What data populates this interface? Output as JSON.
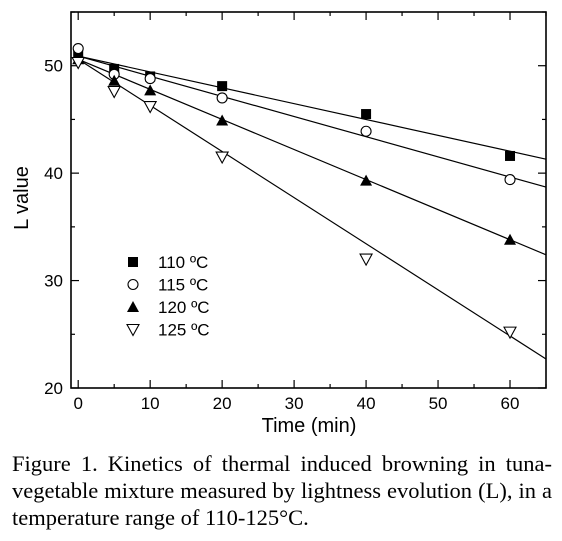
{
  "caption": "Figure 1. Kinetics of thermal induced browning in tuna-vegetable mixture measured by lightness evolution (L), in a temperature range of 110-125°C.",
  "chart_data": {
    "type": "scatter",
    "title": "",
    "xlabel": "Time (min)",
    "ylabel": "L value",
    "xlim": [
      -1,
      65
    ],
    "ylim": [
      20,
      55
    ],
    "xticks": [
      0,
      10,
      20,
      30,
      40,
      50,
      60
    ],
    "yticks": [
      20,
      30,
      40,
      50
    ],
    "grid": false,
    "legend_position": "bottom-left",
    "series": [
      {
        "name": "110 ºC",
        "marker": "filled-square",
        "x": [
          0,
          5,
          10,
          20,
          40,
          60
        ],
        "y": [
          51.0,
          49.7,
          49.0,
          48.1,
          45.5,
          41.6
        ],
        "fit": {
          "x": [
            0,
            65
          ],
          "y": [
            50.9,
            41.3
          ]
        }
      },
      {
        "name": "115 ºC",
        "marker": "open-circle",
        "x": [
          0,
          5,
          10,
          20,
          40,
          60
        ],
        "y": [
          51.6,
          49.2,
          48.8,
          47.0,
          43.9,
          39.4
        ],
        "fit": {
          "x": [
            0,
            65
          ],
          "y": [
            50.9,
            38.7
          ]
        }
      },
      {
        "name": "120 ºC",
        "marker": "filled-triangle-up",
        "x": [
          0,
          5,
          10,
          20,
          40,
          60
        ],
        "y": [
          50.6,
          48.6,
          47.7,
          44.9,
          39.3,
          33.8
        ],
        "fit": {
          "x": [
            0,
            65
          ],
          "y": [
            50.6,
            32.4
          ]
        }
      },
      {
        "name": "125 ºC",
        "marker": "open-triangle-down",
        "x": [
          0,
          5,
          10,
          20,
          40,
          60
        ],
        "y": [
          50.3,
          47.6,
          46.2,
          41.5,
          32.0,
          25.2
        ],
        "fit": {
          "x": [
            0,
            65
          ],
          "y": [
            50.6,
            22.7
          ]
        }
      }
    ]
  }
}
